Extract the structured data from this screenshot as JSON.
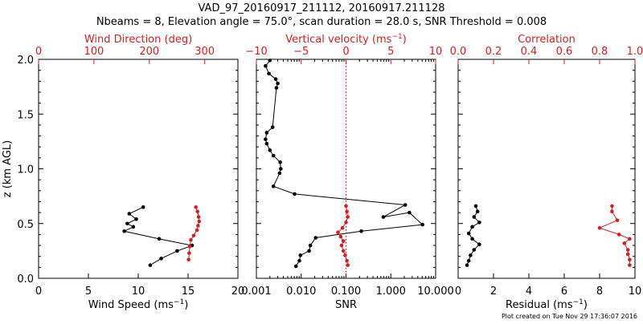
{
  "figure": {
    "title_line1": "VAD_97_20160917_211112, 20160917.211128",
    "title_line2": "Nbeams = 8, Elevation angle = 75.0°, scan duration = 28.0 s, SNR Threshold = 0.008",
    "footer": "Plot created on Tue Nov 29 17:36:07 2016",
    "colors": {
      "primary": "#000000",
      "secondary": "#cc2222"
    }
  },
  "chart_data": [
    {
      "type": "line",
      "title": "",
      "ylabel": "z (km AGL)",
      "ylim": [
        0,
        2
      ],
      "yticks": [
        0,
        0.5,
        1,
        1.5,
        2
      ],
      "ytick_labels": [
        "0.0",
        "0.5",
        "1.0",
        "1.5",
        "2.0"
      ],
      "xlabel": "Wind Speed (ms",
      "xlabel_sup": "−1",
      "xlabel_tail": ")",
      "xlim": [
        0,
        20
      ],
      "xticks": [
        0,
        5,
        10,
        15,
        20
      ],
      "xtick_labels": [
        "0",
        "5",
        "10",
        "15",
        "20"
      ],
      "x2label": "Wind Direction (deg)",
      "x2label_sup": "",
      "x2label_tail": "",
      "x2lim": [
        0,
        360
      ],
      "x2ticks": [
        0,
        100,
        200,
        300
      ],
      "x2tick_labels": [
        "0",
        "100",
        "200",
        "300"
      ],
      "series": [
        {
          "axis": "bottom",
          "color": "#000000",
          "x": [
            10.5,
            9.1,
            9.8,
            8.9,
            9.5,
            8.6,
            12.1,
            15.4,
            13.9,
            12.3,
            11.2
          ],
          "z": [
            0.65,
            0.59,
            0.54,
            0.5,
            0.47,
            0.43,
            0.36,
            0.3,
            0.25,
            0.18,
            0.12
          ]
        },
        {
          "axis": "top",
          "color": "#cc2222",
          "x": [
            284,
            287,
            289,
            290,
            288,
            286,
            280,
            275,
            273,
            272,
            271
          ],
          "z": [
            0.65,
            0.61,
            0.56,
            0.52,
            0.48,
            0.44,
            0.39,
            0.35,
            0.29,
            0.23,
            0.17
          ]
        }
      ]
    },
    {
      "type": "line",
      "title": "",
      "ylim": [
        0,
        2
      ],
      "xlabel": "SNR",
      "xlabel_sup": "",
      "xlabel_tail": "",
      "xscale": "log",
      "xlim": [
        0.001,
        10
      ],
      "xticks": [
        0.001,
        0.01,
        0.1,
        1,
        10
      ],
      "xtick_labels": [
        "0.001",
        "0.010",
        "0.100",
        "1.000",
        "10.000"
      ],
      "x2label": "Vertical velocity (ms",
      "x2label_sup": "−1",
      "x2label_tail": ")",
      "x2lim": [
        -10,
        10
      ],
      "x2ticks": [
        -10,
        -5,
        0,
        5,
        10
      ],
      "x2tick_labels": [
        "−10",
        "−5",
        "0",
        "5",
        "10"
      ],
      "reference_line_top": 0,
      "series": [
        {
          "axis": "bottom",
          "color": "#000000",
          "x": [
            0.002,
            0.0016,
            0.0019,
            0.0027,
            0.003,
            0.0028,
            0.0023,
            0.0017,
            0.0016,
            0.0017,
            0.002,
            0.0024,
            0.0034,
            0.0035,
            0.0033,
            0.0024,
            0.0071,
            2.1,
            0.68,
            2.6,
            5.1,
            0.22,
            0.021,
            0.016,
            0.015,
            0.0096,
            0.0091,
            0.0076
          ],
          "z": [
            1.99,
            1.94,
            1.87,
            1.82,
            1.78,
            1.74,
            1.38,
            1.33,
            1.27,
            1.23,
            1.17,
            1.12,
            1.06,
            1.0,
            0.96,
            0.84,
            0.77,
            0.67,
            0.56,
            0.6,
            0.49,
            0.43,
            0.37,
            0.3,
            0.25,
            0.21,
            0.16,
            0.11
          ]
        },
        {
          "axis": "top",
          "color": "#cc2222",
          "x": [
            0.0,
            0.1,
            0.2,
            0.0,
            -0.4,
            -0.9,
            -0.6,
            -0.3,
            -0.5,
            -0.3,
            -0.1,
            0.1,
            0.2
          ],
          "z": [
            0.66,
            0.61,
            0.56,
            0.51,
            0.46,
            0.42,
            0.38,
            0.34,
            0.3,
            0.25,
            0.21,
            0.16,
            0.12
          ]
        }
      ]
    },
    {
      "type": "line",
      "title": "",
      "ylim": [
        0,
        2
      ],
      "xlabel": "Residual (ms",
      "xlabel_sup": "−1",
      "xlabel_tail": ")",
      "xlim": [
        0,
        10
      ],
      "xticks": [
        0,
        2,
        4,
        6,
        8,
        10
      ],
      "xtick_labels": [
        "0",
        "2",
        "4",
        "6",
        "8",
        "10"
      ],
      "x2label": "Correlation",
      "x2label_sup": "",
      "x2label_tail": "",
      "x2lim": [
        0,
        1
      ],
      "x2ticks": [
        0,
        0.2,
        0.4,
        0.6,
        0.8,
        1.0
      ],
      "x2tick_labels": [
        "0.0",
        "0.2",
        "0.4",
        "0.6",
        "0.8",
        "1.0"
      ],
      "series": [
        {
          "axis": "bottom",
          "color": "#000000",
          "x": [
            1.0,
            1.1,
            0.9,
            1.2,
            0.8,
            0.6,
            0.8,
            1.2,
            0.9,
            0.7,
            0.6,
            0.5
          ],
          "z": [
            0.66,
            0.61,
            0.56,
            0.51,
            0.47,
            0.41,
            0.36,
            0.31,
            0.26,
            0.21,
            0.16,
            0.12
          ]
        },
        {
          "axis": "top",
          "color": "#cc2222",
          "x": [
            0.87,
            0.87,
            0.9,
            0.8,
            0.91,
            0.97,
            0.94,
            0.96,
            0.96,
            0.97,
            0.97
          ],
          "z": [
            0.66,
            0.61,
            0.53,
            0.46,
            0.4,
            0.36,
            0.32,
            0.26,
            0.22,
            0.17,
            0.12
          ]
        }
      ]
    }
  ]
}
